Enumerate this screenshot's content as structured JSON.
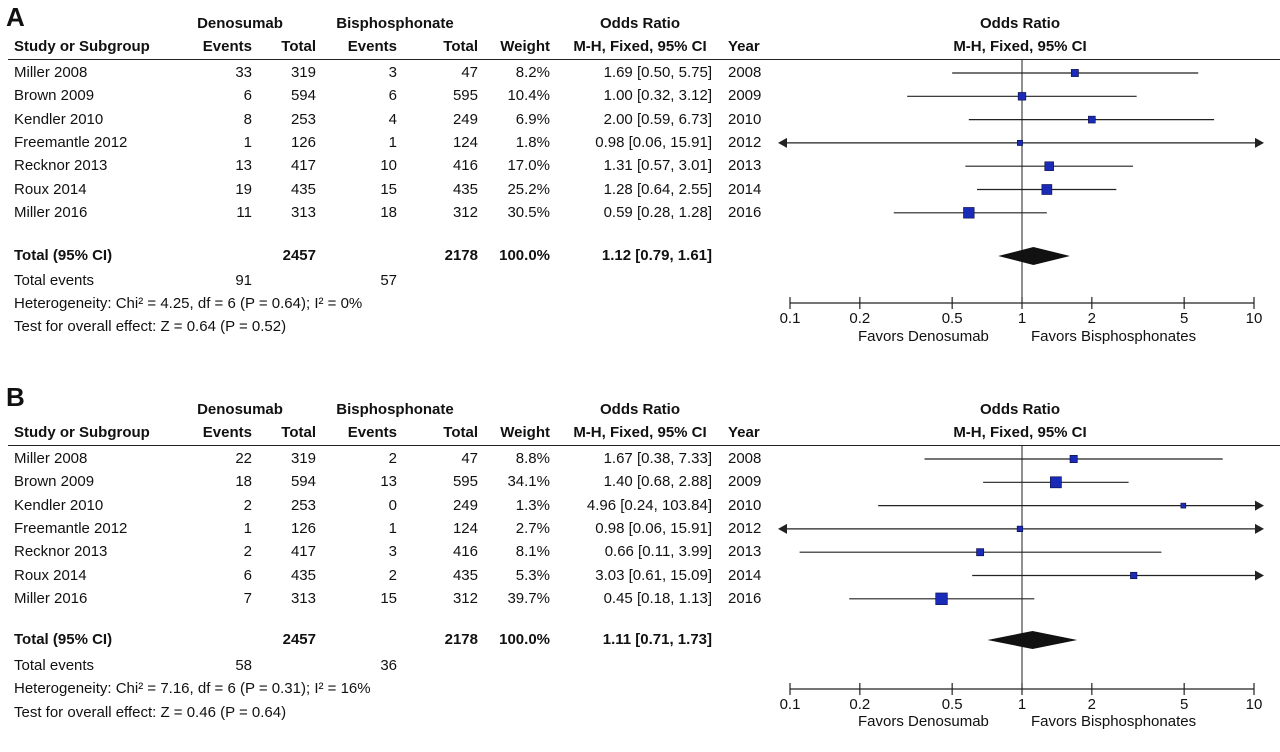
{
  "headers": {
    "group1": "Denosumab",
    "group2": "Bisphosphonate",
    "or_header": "Odds Ratio",
    "study": "Study or Subgroup",
    "events": "Events",
    "total": "Total",
    "weight": "Weight",
    "method": "M-H, Fixed, 95% CI",
    "year": "Year"
  },
  "colors": {
    "marker": "#1a2bb8",
    "diamond": "#111111",
    "line": "#222222"
  },
  "axis_labels": {
    "left": "Favors Denosumab",
    "right": "Favors Bisphosphonates"
  },
  "chart_data": [
    {
      "panel": "A",
      "type": "forest",
      "xscale": "log",
      "xlim": [
        0.1,
        10
      ],
      "xticks": [
        "0.1",
        "0.2",
        "0.5",
        "1",
        "2",
        "5",
        "10"
      ],
      "xtick_values": [
        0.1,
        0.2,
        0.5,
        1,
        2,
        5,
        10
      ],
      "studies": [
        {
          "name": "Miller 2008",
          "e1": "33",
          "n1": "319",
          "e2": "3",
          "n2": "47",
          "weight": "8.2%",
          "ci_text": "1.69 [0.50, 5.75]",
          "year": "2008",
          "or": 1.69,
          "lo": 0.5,
          "hi": 5.75
        },
        {
          "name": "Brown 2009",
          "e1": "6",
          "n1": "594",
          "e2": "6",
          "n2": "595",
          "weight": "10.4%",
          "ci_text": "1.00 [0.32, 3.12]",
          "year": "2009",
          "or": 1.0,
          "lo": 0.32,
          "hi": 3.12
        },
        {
          "name": "Kendler 2010",
          "e1": "8",
          "n1": "253",
          "e2": "4",
          "n2": "249",
          "weight": "6.9%",
          "ci_text": "2.00 [0.59, 6.73]",
          "year": "2010",
          "or": 2.0,
          "lo": 0.59,
          "hi": 6.73
        },
        {
          "name": "Freemantle 2012",
          "e1": "1",
          "n1": "126",
          "e2": "1",
          "n2": "124",
          "weight": "1.8%",
          "ci_text": "0.98 [0.06, 15.91]",
          "year": "2012",
          "or": 0.98,
          "lo": 0.06,
          "hi": 15.91
        },
        {
          "name": "Recknor 2013",
          "e1": "13",
          "n1": "417",
          "e2": "10",
          "n2": "416",
          "weight": "17.0%",
          "ci_text": "1.31 [0.57, 3.01]",
          "year": "2013",
          "or": 1.31,
          "lo": 0.57,
          "hi": 3.01
        },
        {
          "name": "Roux 2014",
          "e1": "19",
          "n1": "435",
          "e2": "15",
          "n2": "435",
          "weight": "25.2%",
          "ci_text": "1.28 [0.64, 2.55]",
          "year": "2014",
          "or": 1.28,
          "lo": 0.64,
          "hi": 2.55
        },
        {
          "name": "Miller 2016",
          "e1": "11",
          "n1": "313",
          "e2": "18",
          "n2": "312",
          "weight": "30.5%",
          "ci_text": "0.59 [0.28, 1.28]",
          "year": "2016",
          "or": 0.59,
          "lo": 0.28,
          "hi": 1.28
        }
      ],
      "total": {
        "label": "Total (95% CI)",
        "n1": "2457",
        "n2": "2178",
        "weight": "100.0%",
        "ci_text": "1.12 [0.79, 1.61]",
        "or": 1.12,
        "lo": 0.79,
        "hi": 1.61
      },
      "total_events": {
        "label": "Total events",
        "e1": "91",
        "e2": "57"
      },
      "heterogeneity": "Heterogeneity: Chi² = 4.25, df = 6 (P = 0.64); I² = 0%",
      "overall_effect": "Test for overall effect: Z = 0.64 (P = 0.52)"
    },
    {
      "panel": "B",
      "type": "forest",
      "xscale": "log",
      "xlim": [
        0.1,
        10
      ],
      "xticks": [
        "0.1",
        "0.2",
        "0.5",
        "1",
        "2",
        "5",
        "10"
      ],
      "xtick_values": [
        0.1,
        0.2,
        0.5,
        1,
        2,
        5,
        10
      ],
      "studies": [
        {
          "name": "Miller 2008",
          "e1": "22",
          "n1": "319",
          "e2": "2",
          "n2": "47",
          "weight": "8.8%",
          "ci_text": "1.67 [0.38, 7.33]",
          "year": "2008",
          "or": 1.67,
          "lo": 0.38,
          "hi": 7.33
        },
        {
          "name": "Brown 2009",
          "e1": "18",
          "n1": "594",
          "e2": "13",
          "n2": "595",
          "weight": "34.1%",
          "ci_text": "1.40 [0.68, 2.88]",
          "year": "2009",
          "or": 1.4,
          "lo": 0.68,
          "hi": 2.88
        },
        {
          "name": "Kendler 2010",
          "e1": "2",
          "n1": "253",
          "e2": "0",
          "n2": "249",
          "weight": "1.3%",
          "ci_text": "4.96 [0.24, 103.84]",
          "year": "2010",
          "or": 4.96,
          "lo": 0.24,
          "hi": 103.84
        },
        {
          "name": "Freemantle 2012",
          "e1": "1",
          "n1": "126",
          "e2": "1",
          "n2": "124",
          "weight": "2.7%",
          "ci_text": "0.98 [0.06, 15.91]",
          "year": "2012",
          "or": 0.98,
          "lo": 0.06,
          "hi": 15.91
        },
        {
          "name": "Recknor 2013",
          "e1": "2",
          "n1": "417",
          "e2": "3",
          "n2": "416",
          "weight": "8.1%",
          "ci_text": "0.66 [0.11, 3.99]",
          "year": "2013",
          "or": 0.66,
          "lo": 0.11,
          "hi": 3.99
        },
        {
          "name": "Roux 2014",
          "e1": "6",
          "n1": "435",
          "e2": "2",
          "n2": "435",
          "weight": "5.3%",
          "ci_text": "3.03 [0.61, 15.09]",
          "year": "2014",
          "or": 3.03,
          "lo": 0.61,
          "hi": 15.09
        },
        {
          "name": "Miller 2016",
          "e1": "7",
          "n1": "313",
          "e2": "15",
          "n2": "312",
          "weight": "39.7%",
          "ci_text": "0.45 [0.18, 1.13]",
          "year": "2016",
          "or": 0.45,
          "lo": 0.18,
          "hi": 1.13
        }
      ],
      "total": {
        "label": "Total (95% CI)",
        "n1": "2457",
        "n2": "2178",
        "weight": "100.0%",
        "ci_text": "1.11 [0.71, 1.73]",
        "or": 1.11,
        "lo": 0.71,
        "hi": 1.73
      },
      "total_events": {
        "label": "Total events",
        "e1": "58",
        "e2": "36"
      },
      "heterogeneity": "Heterogeneity: Chi² = 7.16, df = 6 (P = 0.31); I² = 16%",
      "overall_effect": "Test for overall effect: Z = 0.46 (P = 0.64)"
    }
  ]
}
